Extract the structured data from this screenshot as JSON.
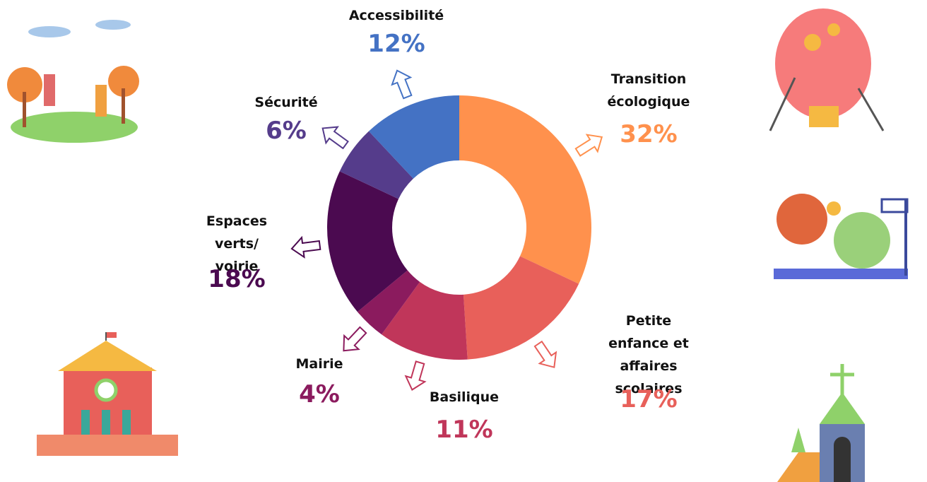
{
  "chart_data": {
    "type": "donut",
    "categories": [
      "Transition écologique",
      "Petite enfance et affaires scolaires",
      "Basilique",
      "Mairie",
      "Espaces verts/ voirie",
      "Sécurité",
      "Accessibilité"
    ],
    "values": [
      32,
      17,
      11,
      4,
      18,
      6,
      12
    ],
    "value_labels": [
      "32%",
      "17%",
      "11%",
      "4%",
      "18%",
      "6%",
      "12%"
    ],
    "colors": [
      "#ff914d",
      "#e8605a",
      "#c0365a",
      "#8b1b5e",
      "#4b0a50",
      "#553c8b",
      "#4472c4"
    ]
  }
}
